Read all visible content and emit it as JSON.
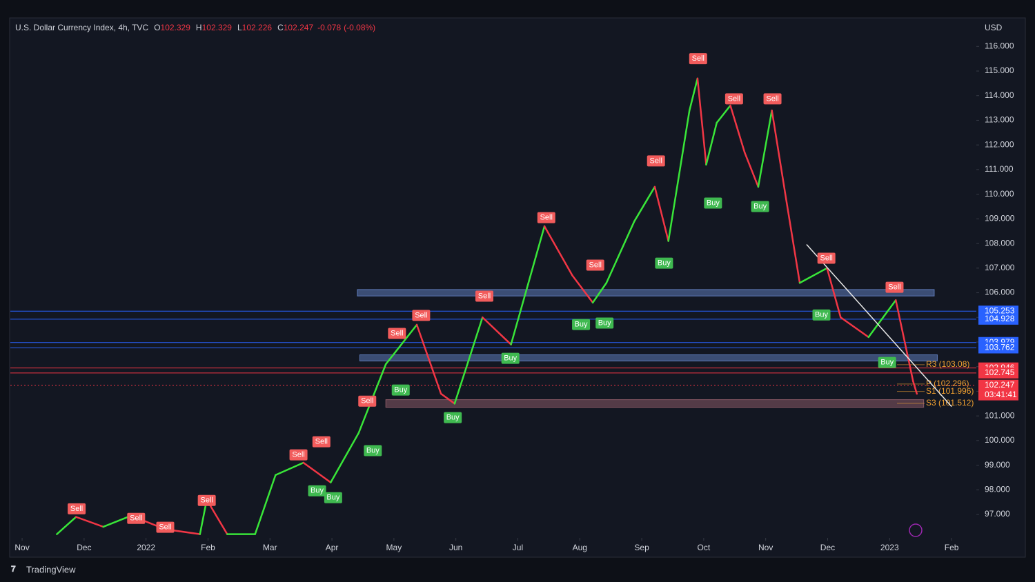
{
  "chart_data": {
    "type": "line",
    "title": "U.S. Dollar Currency Index, 4h, TVC",
    "ohlc": [
      {
        "label": "O",
        "value": 102.329
      },
      {
        "label": "H",
        "value": 102.329
      },
      {
        "label": "L",
        "value": 102.226
      },
      {
        "label": "C",
        "value": 102.247
      }
    ],
    "change": -0.078,
    "change_pct_label": "(-0.08%)",
    "currency": "USD",
    "footer": "TradingView",
    "xlim": [
      -0.19,
      15.4
    ],
    "xticks": [
      {
        "value": 0,
        "label": "Nov"
      },
      {
        "value": 1,
        "label": "Dec"
      },
      {
        "value": 2,
        "label": "2022"
      },
      {
        "value": 3,
        "label": "Feb"
      },
      {
        "value": 4,
        "label": "Mar"
      },
      {
        "value": 5,
        "label": "Apr"
      },
      {
        "value": 6,
        "label": "May"
      },
      {
        "value": 7,
        "label": "Jun"
      },
      {
        "value": 8,
        "label": "Jul"
      },
      {
        "value": 9,
        "label": "Aug"
      },
      {
        "value": 10,
        "label": "Sep"
      },
      {
        "value": 11,
        "label": "Oct"
      },
      {
        "value": 12,
        "label": "Nov"
      },
      {
        "value": 13,
        "label": "Dec"
      },
      {
        "value": 14,
        "label": "2023"
      },
      {
        "value": 15,
        "label": "Feb"
      }
    ],
    "ylim": [
      96.05,
      117.1
    ],
    "yticks": [
      {
        "value": 97,
        "label": "97.000"
      },
      {
        "value": 98,
        "label": "98.000"
      },
      {
        "value": 99,
        "label": "99.000"
      },
      {
        "value": 100,
        "label": "100.000"
      },
      {
        "value": 101,
        "label": "101.000"
      },
      {
        "value": 102,
        "label": "102.000"
      },
      {
        "value": 103,
        "label": "103.000"
      },
      {
        "value": 104,
        "label": "104.000"
      },
      {
        "value": 105,
        "label": "105.000"
      },
      {
        "value": 106,
        "label": "106.000"
      },
      {
        "value": 107,
        "label": "107.000"
      },
      {
        "value": 108,
        "label": "108.000"
      },
      {
        "value": 109,
        "label": "109.000"
      },
      {
        "value": 110,
        "label": "110.000"
      },
      {
        "value": 111,
        "label": "111.000"
      },
      {
        "value": 112,
        "label": "112.000"
      },
      {
        "value": 113,
        "label": "113.000"
      },
      {
        "value": 114,
        "label": "114.000"
      },
      {
        "value": 115,
        "label": "115.000"
      },
      {
        "value": 116,
        "label": "116.000"
      }
    ],
    "series": [
      {
        "up_color": "#39e639",
        "down_color": "#f23645",
        "x": [
          0.56,
          0.87,
          1.31,
          1.76,
          2.31,
          2.87,
          2.98,
          3.31,
          3.76,
          4.09,
          4.54,
          4.98,
          5.43,
          5.87,
          6.37,
          6.76,
          6.98,
          7.43,
          7.89,
          8.43,
          8.88,
          9.21,
          9.43,
          9.88,
          10.21,
          10.43,
          10.77,
          10.9,
          11.04,
          11.21,
          11.43,
          11.66,
          11.88,
          12.1,
          12.33,
          12.55,
          12.99,
          13.21,
          13.66,
          14.1,
          14.38,
          14.44
        ],
        "values": [
          96.2,
          96.9,
          96.5,
          96.95,
          96.4,
          96.2,
          97.6,
          96.2,
          96.2,
          98.6,
          99.1,
          98.3,
          100.3,
          103.1,
          104.7,
          101.9,
          101.5,
          105.0,
          103.9,
          108.7,
          106.7,
          105.6,
          106.4,
          108.9,
          110.3,
          108.1,
          113.4,
          114.7,
          111.2,
          112.9,
          113.6,
          111.7,
          110.3,
          113.4,
          109.8,
          106.4,
          107.0,
          105.0,
          104.2,
          105.7,
          102.4,
          101.9
        ]
      }
    ],
    "signals": [
      {
        "label": "Sell",
        "x": 0.88,
        "value": 97.23
      },
      {
        "label": "Sell",
        "x": 1.84,
        "value": 96.84
      },
      {
        "label": "Sell",
        "x": 2.31,
        "value": 96.48
      },
      {
        "label": "Sell",
        "x": 2.98,
        "value": 97.57
      },
      {
        "label": "Sell",
        "x": 4.46,
        "value": 99.42
      },
      {
        "label": "Sell",
        "x": 4.83,
        "value": 99.95
      },
      {
        "label": "Sell",
        "x": 5.57,
        "value": 101.6
      },
      {
        "label": "Sell",
        "x": 6.05,
        "value": 104.35
      },
      {
        "label": "Sell",
        "x": 6.44,
        "value": 105.08
      },
      {
        "label": "Sell",
        "x": 7.46,
        "value": 105.86
      },
      {
        "label": "Sell",
        "x": 8.46,
        "value": 109.05
      },
      {
        "label": "Sell",
        "x": 9.25,
        "value": 107.12
      },
      {
        "label": "Sell",
        "x": 10.23,
        "value": 111.35
      },
      {
        "label": "Sell",
        "x": 10.91,
        "value": 115.5
      },
      {
        "label": "Sell",
        "x": 11.49,
        "value": 113.87
      },
      {
        "label": "Sell",
        "x": 12.11,
        "value": 113.87
      },
      {
        "label": "Sell",
        "x": 12.98,
        "value": 107.4
      },
      {
        "label": "Sell",
        "x": 14.08,
        "value": 106.22
      },
      {
        "label": "Buy",
        "x": 4.76,
        "value": 97.96
      },
      {
        "label": "Buy",
        "x": 5.02,
        "value": 97.68
      },
      {
        "label": "Buy",
        "x": 5.66,
        "value": 99.59
      },
      {
        "label": "Buy",
        "x": 6.11,
        "value": 102.05
      },
      {
        "label": "Buy",
        "x": 6.95,
        "value": 100.93
      },
      {
        "label": "Buy",
        "x": 7.88,
        "value": 103.34
      },
      {
        "label": "Buy",
        "x": 9.02,
        "value": 104.71
      },
      {
        "label": "Buy",
        "x": 9.4,
        "value": 104.77
      },
      {
        "label": "Buy",
        "x": 10.36,
        "value": 107.2
      },
      {
        "label": "Buy",
        "x": 11.15,
        "value": 109.64
      },
      {
        "label": "Buy",
        "x": 11.91,
        "value": 109.5
      },
      {
        "label": "Buy",
        "x": 12.9,
        "value": 105.1
      },
      {
        "label": "Buy",
        "x": 13.96,
        "value": 103.17
      }
    ],
    "signal_colors": {
      "Sell": "#f25c5c",
      "Buy": "#3fb950"
    },
    "zones": [
      {
        "from": 105.87,
        "to": 106.13,
        "x": [
          5.41,
          14.72
        ],
        "color": "#5d7ab8"
      },
      {
        "from": 103.23,
        "to": 103.48,
        "x": [
          5.45,
          14.77
        ],
        "color": "#5d7ab8"
      },
      {
        "from": 101.35,
        "to": 101.66,
        "x": [
          5.87,
          14.55
        ],
        "color": "#8a5a66"
      }
    ],
    "price_lines": [
      {
        "value": 105.253,
        "color": "#2962ff"
      },
      {
        "value": 104.928,
        "color": "#2962ff"
      },
      {
        "value": 103.979,
        "color": "#2962ff"
      },
      {
        "value": 103.762,
        "color": "#2962ff"
      },
      {
        "value": 102.946,
        "color": "#f23645"
      },
      {
        "value": 102.745,
        "color": "#f23645"
      },
      {
        "value": 102.247,
        "color": "#f23645",
        "countdown": "03:41:41"
      }
    ],
    "pivots": [
      {
        "value": 103.08,
        "label": "R3 (103.08)"
      },
      {
        "value": 102.296,
        "label": "P (102.296)"
      },
      {
        "value": 101.996,
        "label": "S1 (101.996)"
      },
      {
        "value": 101.512,
        "label": "S3 (101.512)"
      }
    ],
    "pivot_color": "#f0a030",
    "trendline": {
      "x": [
        12.66,
        15.0
      ],
      "values": [
        107.96,
        101.38
      ],
      "color": "#e8e8e8"
    }
  }
}
